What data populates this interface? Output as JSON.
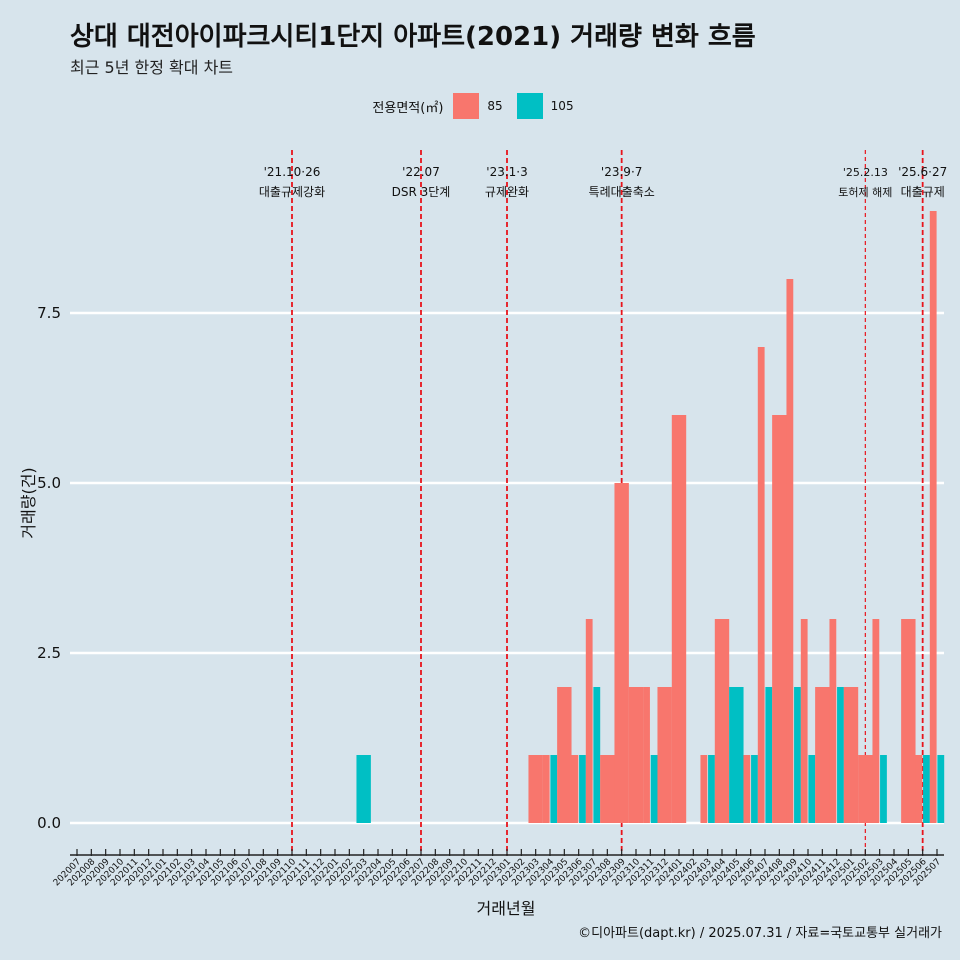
{
  "title": "상대 대전아이파크시티1단지 아파트(2021) 거래량 변화 흐름",
  "subtitle": "최근 5년 한정 확대 차트",
  "caption": "©디아파트(dapt.kr) / 2025.07.31 / 자료=국토교통부 실거래가",
  "legend": {
    "title": "전용면적(㎡)",
    "items": [
      {
        "label": "85",
        "color": "#f8766d"
      },
      {
        "label": "105",
        "color": "#00bfc4"
      }
    ]
  },
  "chart_data": {
    "type": "bar",
    "xlabel": "거래년월",
    "ylabel": "거래량(건)",
    "ylim": [
      -0.4,
      10
    ],
    "yticks": [
      0.0,
      2.5,
      5.0,
      7.5
    ],
    "ytick_labels": [
      "0.0",
      "2.5",
      "5.0",
      "7.5"
    ],
    "grid": true,
    "legend_position": "top",
    "categories": [
      "202007",
      "202008",
      "202009",
      "202010",
      "202011",
      "202012",
      "202101",
      "202102",
      "202103",
      "202104",
      "202105",
      "202106",
      "202107",
      "202108",
      "202109",
      "202110",
      "202111",
      "202112",
      "202201",
      "202202",
      "202203",
      "202204",
      "202205",
      "202206",
      "202207",
      "202208",
      "202209",
      "202210",
      "202211",
      "202212",
      "202301",
      "202302",
      "202303",
      "202304",
      "202305",
      "202306",
      "202307",
      "202308",
      "202309",
      "202310",
      "202311",
      "202312",
      "202401",
      "202402",
      "202403",
      "202404",
      "202405",
      "202406",
      "202407",
      "202408",
      "202409",
      "202410",
      "202411",
      "202412",
      "202501",
      "202502",
      "202503",
      "202504",
      "202505",
      "202506",
      "202507"
    ],
    "series": [
      {
        "name": "85",
        "color": "#f8766d",
        "values": [
          0,
          0,
          0,
          0,
          0,
          0,
          0,
          0,
          0,
          0,
          0,
          0,
          0,
          0,
          0,
          0,
          0,
          0,
          0,
          0,
          0,
          0,
          0,
          0,
          0,
          0,
          0,
          0,
          0,
          0,
          0,
          0,
          1,
          1,
          2,
          1,
          3,
          1,
          5,
          2,
          2,
          2,
          6,
          0,
          1,
          3,
          0,
          1,
          7,
          6,
          8,
          3,
          2,
          3,
          2,
          1,
          3,
          0,
          3,
          1,
          9
        ]
      },
      {
        "name": "105",
        "color": "#00bfc4",
        "values": [
          0,
          0,
          0,
          0,
          0,
          0,
          0,
          0,
          0,
          0,
          0,
          0,
          0,
          0,
          0,
          0,
          0,
          0,
          0,
          0,
          1,
          0,
          0,
          0,
          0,
          0,
          0,
          0,
          0,
          0,
          0,
          0,
          0,
          1,
          0,
          1,
          2,
          0,
          0,
          0,
          1,
          0,
          0,
          0,
          1,
          0,
          2,
          1,
          2,
          0,
          2,
          1,
          0,
          2,
          0,
          0,
          1,
          0,
          0,
          1,
          1
        ]
      }
    ],
    "annotations": [
      {
        "category": "202110",
        "date": "'21.10·26",
        "label": "대출규제강화",
        "style": "bold-dash"
      },
      {
        "category": "202207",
        "date": "'22.07",
        "label": "DSR 3단계",
        "style": "bold-dash"
      },
      {
        "category": "202301",
        "date": "'23.1·3",
        "label": "규제완화",
        "style": "bold-dash"
      },
      {
        "category": "202309",
        "date": "'23.9·7",
        "label": "특례대출축소",
        "style": "bold-dash"
      },
      {
        "category": "202502",
        "date": "'25.2.13",
        "label": "토허제 해제",
        "style": "thin-dash"
      },
      {
        "category": "202506",
        "date": "'25.6·27",
        "label": "대출규제",
        "style": "bold-dash"
      }
    ]
  }
}
